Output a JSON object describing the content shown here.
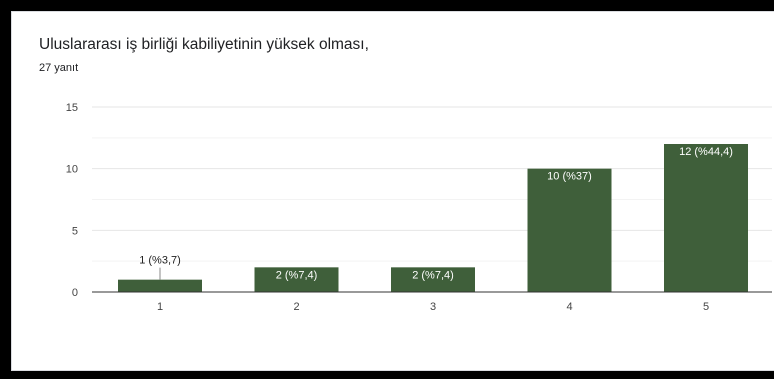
{
  "title": "Uluslararası iş birliği kabiliyetinin yüksek olması,",
  "subtitle": "27 yanıt",
  "chart_data": {
    "type": "bar",
    "categories": [
      "1",
      "2",
      "3",
      "4",
      "5"
    ],
    "values": [
      1,
      2,
      2,
      10,
      12
    ],
    "data_labels": [
      "1 (%3,7)",
      "2 (%7,4)",
      "2 (%7,4)",
      "10 (%37)",
      "12 (%44,4)"
    ],
    "ylim": [
      0,
      15
    ],
    "yticks": [
      0,
      5,
      10,
      15
    ],
    "bar_color": "#3f5f3a",
    "grid": true
  }
}
